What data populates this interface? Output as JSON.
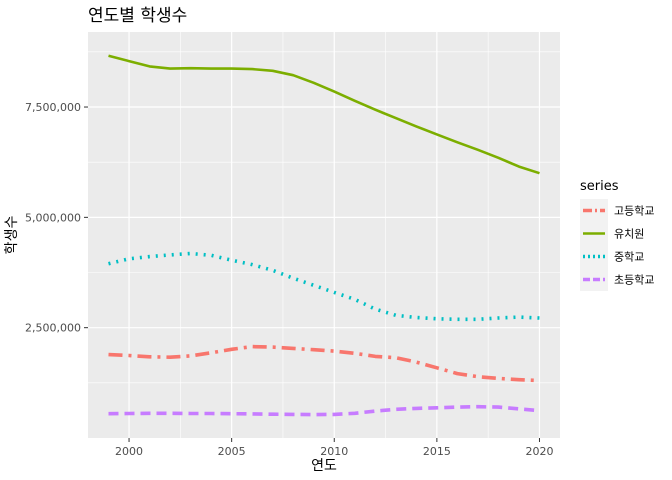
{
  "chart_data": {
    "type": "line",
    "title": "연도별 학생수",
    "xlabel": "연도",
    "ylabel": "학생수",
    "xlim": [
      1998,
      2021
    ],
    "ylim": [
      0,
      9200000
    ],
    "x_ticks": [
      2000,
      2005,
      2010,
      2015,
      2020
    ],
    "y_ticks": [
      2500000,
      5000000,
      7500000
    ],
    "y_tick_labels": [
      "2,500,000",
      "5,000,000",
      "7,500,000"
    ],
    "grid": true,
    "legend_title": "series",
    "legend_position": "right",
    "x": [
      1999,
      2000,
      2001,
      2002,
      2003,
      2004,
      2005,
      2006,
      2007,
      2008,
      2009,
      2010,
      2011,
      2012,
      2013,
      2014,
      2015,
      2016,
      2017,
      2018,
      2019,
      2020
    ],
    "series": [
      {
        "name": "고등학교",
        "color": "#F8766D",
        "dash": "14,6,3,6",
        "values": [
          1890000,
          1870000,
          1840000,
          1830000,
          1860000,
          1930000,
          2010000,
          2070000,
          2060000,
          2030000,
          2000000,
          1970000,
          1920000,
          1850000,
          1820000,
          1720000,
          1590000,
          1460000,
          1390000,
          1350000,
          1320000,
          1300000
        ]
      },
      {
        "name": "유치원",
        "color": "#7CAE00",
        "dash": "none",
        "values": [
          8660000,
          8540000,
          8420000,
          8370000,
          8380000,
          8370000,
          8370000,
          8360000,
          8320000,
          8220000,
          8050000,
          7850000,
          7640000,
          7440000,
          7250000,
          7060000,
          6880000,
          6700000,
          6530000,
          6350000,
          6150000,
          6000000
        ]
      },
      {
        "name": "중학교",
        "color": "#00BFC4",
        "dash": "2,6",
        "values": [
          3950000,
          4060000,
          4110000,
          4150000,
          4180000,
          4140000,
          4030000,
          3930000,
          3800000,
          3620000,
          3460000,
          3300000,
          3140000,
          2920000,
          2780000,
          2730000,
          2700000,
          2690000,
          2690000,
          2720000,
          2740000,
          2720000
        ]
      },
      {
        "name": "초등학교",
        "color": "#C77CFF",
        "dash": "10,6",
        "values": [
          550000,
          555000,
          560000,
          560000,
          555000,
          555000,
          550000,
          545000,
          540000,
          535000,
          530000,
          535000,
          560000,
          610000,
          650000,
          670000,
          685000,
          700000,
          710000,
          700000,
          660000,
          620000
        ]
      }
    ]
  }
}
